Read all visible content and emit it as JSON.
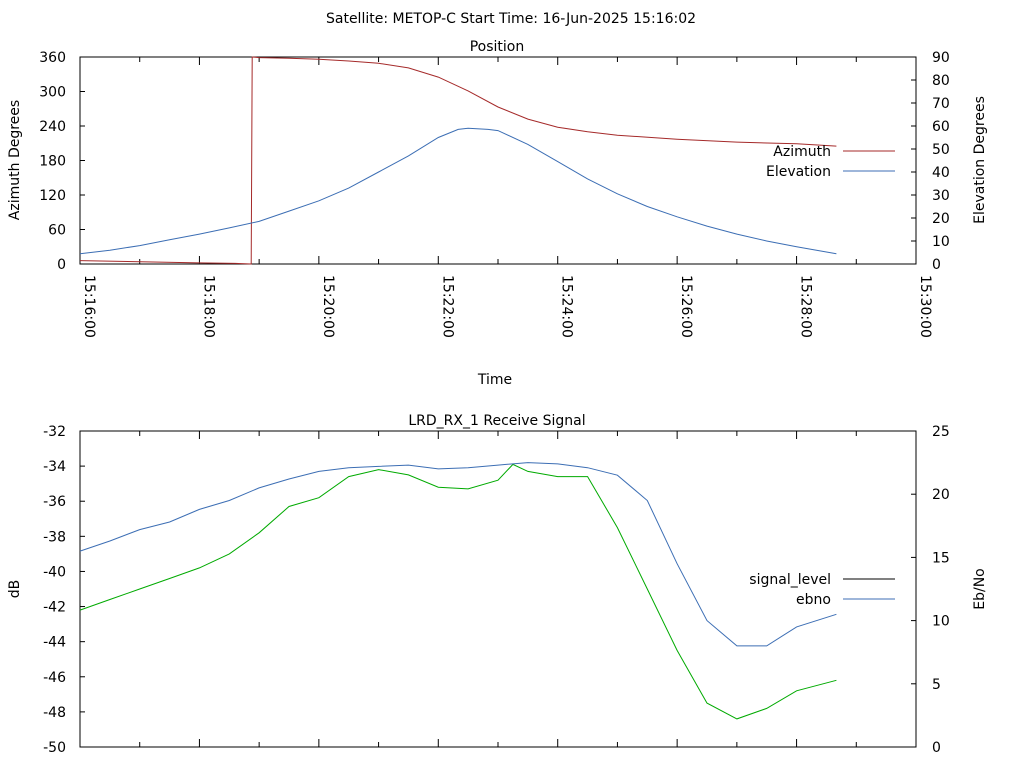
{
  "page": {
    "header": "Satellite: METOP-C    Start Time: 16-Jun-2025 15:16:02"
  },
  "chart_data": [
    {
      "type": "line",
      "title": "Position",
      "xlabel": "Time",
      "ylabel": "Azimuth Degrees",
      "y2label": "Elevation Degrees",
      "x_tick_labels": [
        "15:16:00",
        "15:18:00",
        "15:20:00",
        "15:22:00",
        "15:24:00",
        "15:26:00",
        "15:28:00",
        "15:30:00"
      ],
      "xlim": [
        "15:16:00",
        "15:30:00"
      ],
      "ylim": [
        0,
        360
      ],
      "y_ticks": [
        0,
        60,
        120,
        180,
        240,
        300,
        360
      ],
      "y2lim": [
        0,
        90
      ],
      "y2_ticks": [
        0,
        10,
        20,
        30,
        40,
        50,
        60,
        70,
        80,
        90
      ],
      "grid": false,
      "legend": "right",
      "series": [
        {
          "name": "Azimuth",
          "axis": "left",
          "color": "#a52a2a",
          "x": [
            "15:16:00",
            "15:17:00",
            "15:18:00",
            "15:18:36",
            "15:18:52",
            "15:18:53",
            "15:19:00",
            "15:19:30",
            "15:20:00",
            "15:20:30",
            "15:21:00",
            "15:21:30",
            "15:22:00",
            "15:22:30",
            "15:23:00",
            "15:23:30",
            "15:24:00",
            "15:24:30",
            "15:25:00",
            "15:26:00",
            "15:27:00",
            "15:28:00",
            "15:28:40"
          ],
          "values": [
            6,
            4,
            2,
            1,
            0,
            360,
            359,
            358,
            356,
            353,
            349,
            341,
            325,
            301,
            273,
            252,
            238,
            230,
            224,
            217,
            212,
            209,
            205
          ]
        },
        {
          "name": "Elevation",
          "axis": "right",
          "color": "#3c6eb4",
          "x": [
            "15:16:00",
            "15:16:30",
            "15:17:00",
            "15:17:30",
            "15:18:00",
            "15:18:30",
            "15:19:00",
            "15:19:30",
            "15:20:00",
            "15:20:30",
            "15:21:00",
            "15:21:30",
            "15:22:00",
            "15:22:20",
            "15:22:30",
            "15:22:50",
            "15:23:00",
            "15:23:30",
            "15:24:00",
            "15:24:30",
            "15:25:00",
            "15:25:30",
            "15:26:00",
            "15:26:30",
            "15:27:00",
            "15:27:30",
            "15:28:00",
            "15:28:40"
          ],
          "values": [
            4.5,
            6,
            8,
            10.5,
            13,
            15.7,
            18.5,
            23,
            27.5,
            33,
            40,
            47,
            55,
            58.5,
            59,
            58.5,
            58,
            52,
            44.5,
            37,
            30.5,
            25,
            20.5,
            16.5,
            13,
            10,
            7.5,
            4.5
          ]
        }
      ]
    },
    {
      "type": "line",
      "title": "LRD_RX_1 Receive Signal",
      "xlabel": "",
      "ylabel": "dB",
      "y2label": "Eb/No",
      "xlim": [
        "15:16:00",
        "15:30:00"
      ],
      "ylim": [
        -50,
        -32
      ],
      "y_ticks": [
        -50,
        -48,
        -46,
        -44,
        -42,
        -40,
        -38,
        -36,
        -34,
        -32
      ],
      "y2lim": [
        0,
        25
      ],
      "y2_ticks": [
        0,
        5,
        10,
        15,
        20,
        25
      ],
      "grid": false,
      "legend": "right",
      "series": [
        {
          "name": "signal_level",
          "axis": "left",
          "color": "#00aa00",
          "x": [
            "15:16:00",
            "15:16:30",
            "15:17:00",
            "15:17:30",
            "15:18:00",
            "15:18:30",
            "15:19:00",
            "15:19:30",
            "15:20:00",
            "15:20:30",
            "15:21:00",
            "15:21:30",
            "15:22:00",
            "15:22:30",
            "15:23:00",
            "15:23:15",
            "15:23:30",
            "15:24:00",
            "15:24:30",
            "15:25:00",
            "15:25:30",
            "15:26:00",
            "15:26:30",
            "15:27:00",
            "15:27:30",
            "15:28:00",
            "15:28:40"
          ],
          "values": [
            -42.2,
            -41.6,
            -41,
            -40.4,
            -39.8,
            -39,
            -37.8,
            -36.3,
            -35.8,
            -34.6,
            -34.2,
            -34.5,
            -35.2,
            -35.3,
            -34.8,
            -33.9,
            -34.3,
            -34.6,
            -34.6,
            -37.5,
            -41,
            -44.5,
            -47.5,
            -48.4,
            -47.8,
            -46.8,
            -46.2
          ]
        },
        {
          "name": "ebno",
          "axis": "right",
          "color": "#3c6eb4",
          "x": [
            "15:16:00",
            "15:16:30",
            "15:17:00",
            "15:17:30",
            "15:18:00",
            "15:18:30",
            "15:19:00",
            "15:19:30",
            "15:20:00",
            "15:20:30",
            "15:21:00",
            "15:21:30",
            "15:22:00",
            "15:22:30",
            "15:23:00",
            "15:23:30",
            "15:24:00",
            "15:24:30",
            "15:25:00",
            "15:25:30",
            "15:26:00",
            "15:26:30",
            "15:27:00",
            "15:27:30",
            "15:28:00",
            "15:28:40"
          ],
          "values": [
            15.5,
            16.3,
            17.2,
            17.8,
            18.8,
            19.5,
            20.5,
            21.2,
            21.8,
            22.1,
            22.2,
            22.3,
            22,
            22.1,
            22.3,
            22.5,
            22.4,
            22.1,
            21.5,
            19.5,
            14.5,
            10,
            8,
            8,
            9.5,
            10.5
          ]
        }
      ]
    }
  ]
}
